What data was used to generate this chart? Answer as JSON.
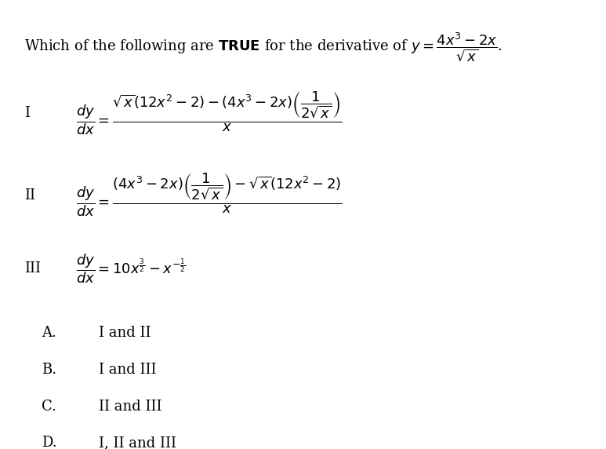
{
  "background_color": "#ffffff",
  "figsize": [
    7.73,
    5.72
  ],
  "dpi": 100,
  "title_text": "Which of the following are \\textbf{TRUE} for the derivative of $y = \\dfrac{4x^3-2x}{\\sqrt{x}}$.",
  "items": [
    {
      "label": "I",
      "math": "$\\dfrac{dy}{dx} = \\dfrac{\\sqrt{x}(12x^2-2)-(4x^3-2x)\\left(\\dfrac{1}{2\\sqrt{x}}\\right)}{x}$"
    },
    {
      "label": "II",
      "math": "$\\dfrac{dy}{dx} = \\dfrac{(4x^3-2x)\\left(\\dfrac{1}{2\\sqrt{x}}\\right)-\\sqrt{x}(12x^2-2)}{x}$"
    },
    {
      "label": "III",
      "math": "$\\dfrac{dy}{dx} = 10x^{\\frac{3}{2}} - x^{-\\frac{1}{2}}$"
    }
  ],
  "choices": [
    {
      "label": "A.",
      "text": "I and II"
    },
    {
      "label": "B.",
      "text": "I and III"
    },
    {
      "label": "C.",
      "text": "II and III"
    },
    {
      "label": "D.",
      "text": "I, II and III"
    }
  ],
  "font_size_title": 13,
  "font_size_items": 13,
  "font_size_choices": 13
}
